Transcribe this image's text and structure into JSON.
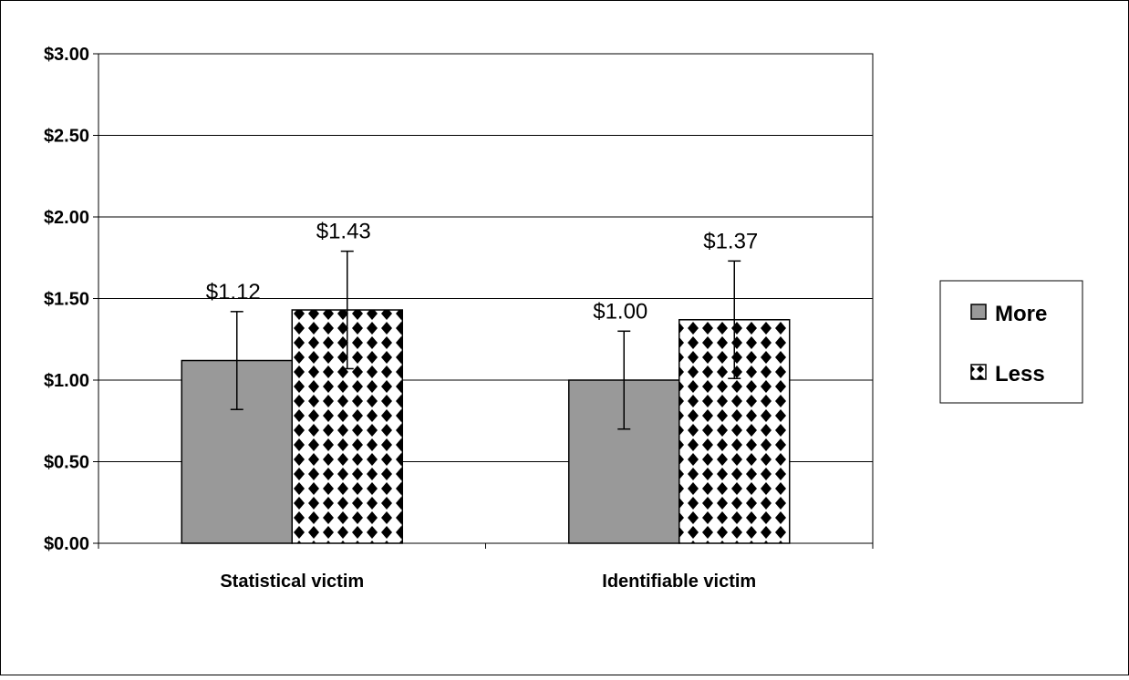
{
  "chart_data": {
    "type": "bar",
    "categories": [
      "Statistical victim",
      "Identifiable victim"
    ],
    "series": [
      {
        "name": "More",
        "values": [
          1.12,
          1.0
        ],
        "labels": [
          "$1.12",
          "$1.00"
        ],
        "error_low": [
          0.82,
          0.7
        ],
        "error_high": [
          1.42,
          1.3
        ],
        "color": "#999999",
        "pattern": "solid"
      },
      {
        "name": "Less",
        "values": [
          1.43,
          1.37
        ],
        "labels": [
          "$1.43",
          "$1.37"
        ],
        "error_low": [
          1.07,
          1.01
        ],
        "error_high": [
          1.79,
          1.73
        ],
        "color": "#000000",
        "pattern": "checkered"
      }
    ],
    "ylim": [
      0,
      3
    ],
    "yticks": [
      0,
      0.5,
      1.0,
      1.5,
      2.0,
      2.5,
      3.0
    ],
    "ytick_labels": [
      "$0.00",
      "$0.50",
      "$1.00",
      "$1.50",
      "$2.00",
      "$2.50",
      "$3.00"
    ],
    "grid": true,
    "legend_position": "right",
    "title": "",
    "xlabel": "",
    "ylabel": ""
  }
}
